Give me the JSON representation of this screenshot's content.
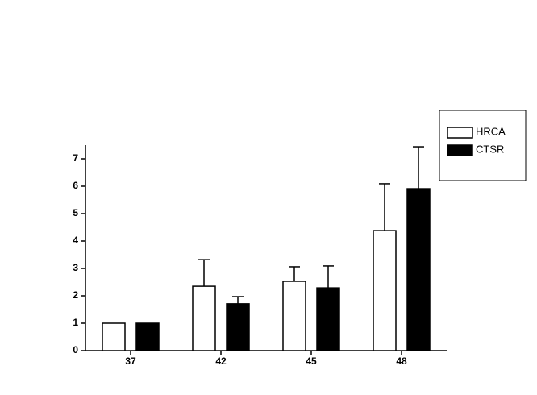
{
  "chart_data": {
    "type": "bar",
    "categories": [
      "37",
      "42",
      "45",
      "48"
    ],
    "series": [
      {
        "name": "HRCA",
        "color": "#ffffff",
        "values": [
          1.0,
          2.35,
          2.53,
          4.38
        ],
        "errors": [
          0,
          0.97,
          0.53,
          1.71
        ]
      },
      {
        "name": "CTSR",
        "color": "#000000",
        "values": [
          1.0,
          1.71,
          2.29,
          5.91
        ],
        "errors": [
          0,
          0.26,
          0.8,
          1.53
        ]
      }
    ],
    "ylim": [
      0,
      7.5
    ],
    "yticks": [
      0,
      1,
      2,
      3,
      4,
      5,
      6,
      7
    ],
    "grid": false,
    "legend": "upper right"
  }
}
